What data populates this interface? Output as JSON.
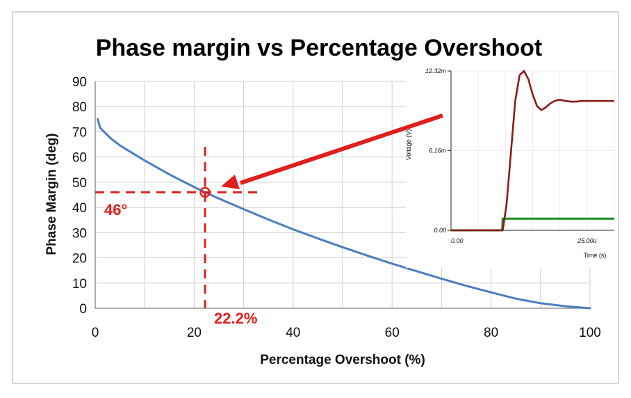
{
  "chart_data": [
    {
      "type": "line",
      "title": "Phase margin vs Percentage Overshoot",
      "xlabel": "Percentage Overshoot (%)",
      "ylabel": "Phase Margin (deg)",
      "xlim": [
        0,
        100
      ],
      "ylim": [
        0,
        90
      ],
      "xticks": [
        "0",
        "20",
        "40",
        "60",
        "80",
        "100"
      ],
      "yticks": [
        "0",
        "10",
        "20",
        "30",
        "40",
        "50",
        "60",
        "70",
        "80",
        "90"
      ],
      "grid": true,
      "line_color": "#4a7ec0",
      "series": [
        {
          "x": [
            0.5,
            1,
            2,
            3,
            5,
            7,
            10,
            15,
            20,
            22.2,
            25,
            30,
            35,
            40,
            45,
            50,
            55,
            60,
            65,
            70,
            75,
            80,
            85,
            90,
            95,
            100
          ],
          "y": [
            75.0,
            71.6,
            69.6,
            67.6,
            64.6,
            62.2,
            58.6,
            53.1,
            48.1,
            46.0,
            43.5,
            39.3,
            35.2,
            31.3,
            27.7,
            24.2,
            20.9,
            17.7,
            14.7,
            11.7,
            8.9,
            6.3,
            3.8,
            2.0,
            0.8,
            0.0
          ]
        }
      ],
      "annotations": [
        {
          "text": "46°",
          "x": 22.2,
          "y": 46,
          "color": "#e0201c"
        },
        {
          "text": "22.2%",
          "x": 22.2,
          "y": 46,
          "color": "#e0201c"
        }
      ]
    },
    {
      "type": "line",
      "title": "",
      "xlabel": "Time (s)",
      "ylabel": "Voltage (V)",
      "xticks": [
        "0.00",
        "25.00u"
      ],
      "yticks": [
        "0.00",
        "6.16m",
        "12.32m"
      ],
      "xlim": [
        0,
        30
      ],
      "ylim": [
        0,
        12.32
      ],
      "series": [
        {
          "color": "#8b1a1a",
          "x": [
            0,
            9.5,
            10.2,
            11,
            11.8,
            12.6,
            13.4,
            14.2,
            15.0,
            15.8,
            16.6,
            17.4,
            18.2,
            19.0,
            20.0,
            21.0,
            22.0,
            23.0,
            24.0,
            25.0,
            27.0,
            30.0
          ],
          "y": [
            0.0,
            0.0,
            2.0,
            6.0,
            10.0,
            12.0,
            12.32,
            11.7,
            10.5,
            9.6,
            9.3,
            9.5,
            9.8,
            10.0,
            10.1,
            10.0,
            9.95,
            9.95,
            10.0,
            10.0,
            10.0,
            10.0
          ]
        },
        {
          "color": "#1e8c1e",
          "x": [
            0,
            9.4,
            9.5,
            30
          ],
          "y": [
            0.0,
            0.0,
            0.9,
            0.9
          ]
        }
      ]
    }
  ]
}
